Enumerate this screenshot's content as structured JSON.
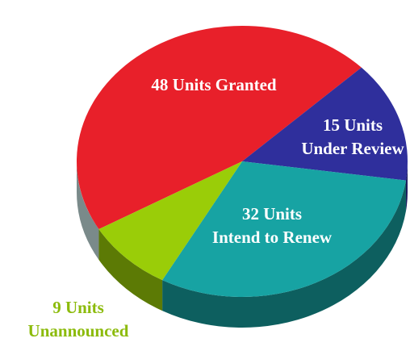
{
  "chart_data": {
    "type": "pie",
    "categories": [
      "Granted",
      "Under Review",
      "Intend to Renew",
      "Unannounced"
    ],
    "values": [
      48,
      15,
      32,
      9
    ],
    "value_labels": [
      "48 Units",
      "15 Units",
      "32 Units",
      "9 Units"
    ],
    "colors": [
      "#e8202a",
      "#2f2f9c",
      "#17a3a3",
      "#9acd08"
    ],
    "side_colors": [
      "#7a8a8a",
      "#1c1c60",
      "#0d5f5f",
      "#5c7a05"
    ],
    "label_colors": [
      "#ffffff",
      "#ffffff",
      "#ffffff",
      "#8cbb0c"
    ]
  }
}
